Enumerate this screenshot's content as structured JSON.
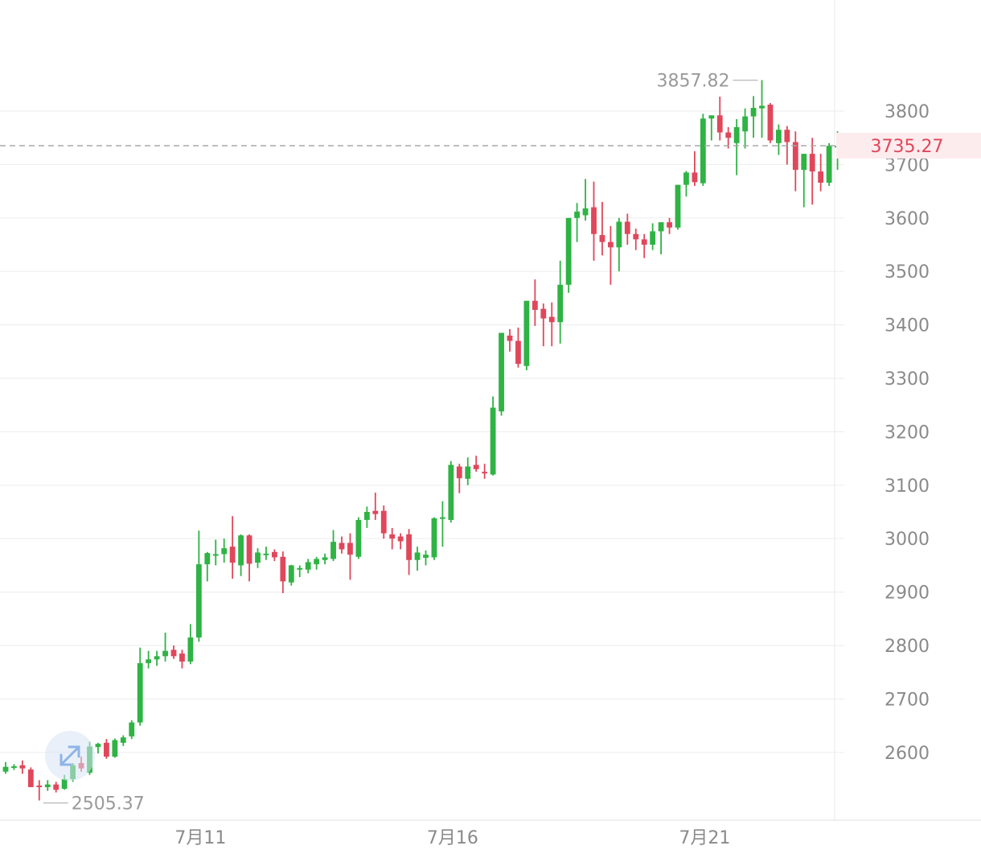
{
  "chart_data": {
    "type": "candlestick",
    "colors": {
      "up": "#2fb344",
      "down": "#e0475b",
      "grid": "#efefef",
      "axis_text": "#8a8a8a"
    },
    "ylim": [
      2480,
      3880
    ],
    "yticks": [
      2600,
      2700,
      2800,
      2900,
      3000,
      3100,
      3200,
      3300,
      3400,
      3500,
      3600,
      3700,
      3800
    ],
    "xticks": [
      {
        "label": "7月11",
        "index": 23
      },
      {
        "label": "7月16",
        "index": 53
      },
      {
        "label": "7月21",
        "index": 83
      }
    ],
    "high_label": "3857.82",
    "low_label": "2505.37",
    "current_price": "3735.27",
    "candles": [
      [
        2564,
        2582,
        2560,
        2573
      ],
      [
        2573,
        2578,
        2567,
        2574
      ],
      [
        2576,
        2585,
        2560,
        2570
      ],
      [
        2568,
        2572,
        2540,
        2535
      ],
      [
        2538,
        2548,
        2510,
        2536
      ],
      [
        2535,
        2548,
        2528,
        2540
      ],
      [
        2540,
        2545,
        2525,
        2530
      ],
      [
        2532,
        2558,
        2530,
        2550
      ],
      [
        2550,
        2580,
        2545,
        2576
      ],
      [
        2580,
        2592,
        2564,
        2570
      ],
      [
        2562,
        2620,
        2558,
        2611
      ],
      [
        2610,
        2618,
        2598,
        2616
      ],
      [
        2618,
        2625,
        2588,
        2592
      ],
      [
        2592,
        2626,
        2590,
        2623
      ],
      [
        2618,
        2632,
        2612,
        2628
      ],
      [
        2630,
        2660,
        2625,
        2656
      ],
      [
        2656,
        2796,
        2650,
        2767
      ],
      [
        2767,
        2790,
        2757,
        2774
      ],
      [
        2774,
        2790,
        2762,
        2780
      ],
      [
        2780,
        2824,
        2770,
        2790
      ],
      [
        2792,
        2800,
        2775,
        2780
      ],
      [
        2785,
        2792,
        2757,
        2770
      ],
      [
        2770,
        2840,
        2765,
        2815
      ],
      [
        2815,
        3015,
        2807,
        2952
      ],
      [
        2952,
        2975,
        2920,
        2973
      ],
      [
        2970,
        2998,
        2950,
        2971
      ],
      [
        2971,
        3000,
        2955,
        2982
      ],
      [
        2985,
        3042,
        2925,
        2955
      ],
      [
        2950,
        3008,
        2930,
        3006
      ],
      [
        3006,
        3008,
        2920,
        2953
      ],
      [
        2955,
        2982,
        2945,
        2974
      ],
      [
        2970,
        2985,
        2960,
        2972
      ],
      [
        2975,
        2980,
        2958,
        2965
      ],
      [
        2966,
        2976,
        2898,
        2920
      ],
      [
        2918,
        2951,
        2912,
        2950
      ],
      [
        2945,
        2950,
        2928,
        2945
      ],
      [
        2942,
        2962,
        2935,
        2956
      ],
      [
        2952,
        2966,
        2942,
        2962
      ],
      [
        2960,
        2972,
        2952,
        2965
      ],
      [
        2962,
        3016,
        2958,
        2994
      ],
      [
        2992,
        3004,
        2972,
        2980
      ],
      [
        2992,
        3010,
        2923,
        2970
      ],
      [
        2966,
        3040,
        2962,
        3035
      ],
      [
        3035,
        3060,
        3020,
        3050
      ],
      [
        3052,
        3086,
        3035,
        3046
      ],
      [
        3052,
        3062,
        3000,
        3010
      ],
      [
        3008,
        3020,
        2980,
        3000
      ],
      [
        3004,
        3010,
        2980,
        2995
      ],
      [
        3008,
        3018,
        2932,
        2960
      ],
      [
        2960,
        2985,
        2940,
        2974
      ],
      [
        2964,
        2978,
        2950,
        2970
      ],
      [
        2965,
        3040,
        2960,
        3038
      ],
      [
        3038,
        3070,
        2985,
        3040
      ],
      [
        3035,
        3145,
        3030,
        3138
      ],
      [
        3135,
        3140,
        3085,
        3113
      ],
      [
        3112,
        3152,
        3100,
        3135
      ],
      [
        3138,
        3155,
        3125,
        3130
      ],
      [
        3125,
        3140,
        3112,
        3122
      ],
      [
        3120,
        3266,
        3118,
        3245
      ],
      [
        3238,
        3385,
        3230,
        3385
      ],
      [
        3380,
        3392,
        3350,
        3370
      ],
      [
        3370,
        3395,
        3320,
        3327
      ],
      [
        3323,
        3445,
        3315,
        3445
      ],
      [
        3445,
        3485,
        3398,
        3428
      ],
      [
        3430,
        3440,
        3360,
        3412
      ],
      [
        3415,
        3442,
        3360,
        3405
      ],
      [
        3405,
        3520,
        3365,
        3475
      ],
      [
        3475,
        3600,
        3460,
        3600
      ],
      [
        3600,
        3628,
        3555,
        3612
      ],
      [
        3605,
        3673,
        3595,
        3618
      ],
      [
        3620,
        3668,
        3520,
        3570
      ],
      [
        3568,
        3630,
        3530,
        3555
      ],
      [
        3555,
        3585,
        3475,
        3545
      ],
      [
        3545,
        3600,
        3500,
        3593
      ],
      [
        3593,
        3608,
        3550,
        3570
      ],
      [
        3570,
        3580,
        3540,
        3560
      ],
      [
        3560,
        3570,
        3525,
        3550
      ],
      [
        3550,
        3590,
        3540,
        3575
      ],
      [
        3575,
        3585,
        3532,
        3592
      ],
      [
        3592,
        3600,
        3570,
        3582
      ],
      [
        3582,
        3662,
        3578,
        3662
      ],
      [
        3662,
        3688,
        3640,
        3685
      ],
      [
        3685,
        3725,
        3660,
        3667
      ],
      [
        3665,
        3795,
        3660,
        3786
      ],
      [
        3786,
        3792,
        3745,
        3792
      ],
      [
        3792,
        3827,
        3745,
        3760
      ],
      [
        3760,
        3770,
        3730,
        3750
      ],
      [
        3740,
        3785,
        3680,
        3770
      ],
      [
        3762,
        3805,
        3730,
        3790
      ],
      [
        3790,
        3828,
        3750,
        3806
      ],
      [
        3805,
        3858,
        3750,
        3810
      ],
      [
        3812,
        3815,
        3740,
        3745
      ],
      [
        3740,
        3775,
        3718,
        3765
      ],
      [
        3765,
        3772,
        3700,
        3742
      ],
      [
        3742,
        3762,
        3650,
        3690
      ],
      [
        3690,
        3720,
        3620,
        3720
      ],
      [
        3720,
        3750,
        3625,
        3687
      ],
      [
        3687,
        3720,
        3650,
        3666
      ],
      [
        3666,
        3740,
        3660,
        3735
      ],
      [
        3735,
        3762,
        3690,
        3735
      ]
    ]
  }
}
